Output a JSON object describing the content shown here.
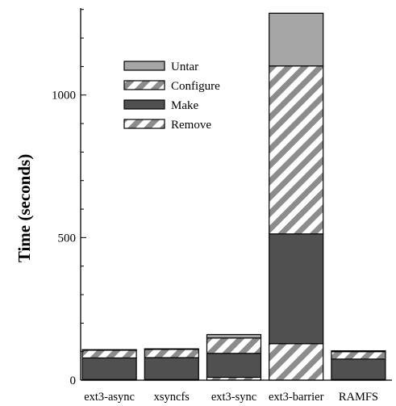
{
  "chart_data": {
    "type": "bar",
    "stacked": true,
    "categories": [
      "ext3-async",
      "xsyncfs",
      "ext3-sync",
      "ext3-barrier",
      "RAMFS"
    ],
    "series": [
      {
        "name": "Remove",
        "values": [
          2,
          2,
          10,
          128,
          2
        ],
        "fill": "hatch-light"
      },
      {
        "name": "Make",
        "values": [
          76,
          77,
          84,
          385,
          72
        ],
        "fill": "#505050"
      },
      {
        "name": "Configure",
        "values": [
          27,
          29,
          54,
          589,
          26
        ],
        "fill": "hatch-light"
      },
      {
        "name": "Untar",
        "values": [
          2,
          2,
          12,
          185,
          3
        ],
        "fill": "#a6a6a6"
      }
    ],
    "ylabel": "Time (seconds)",
    "xlabel": "",
    "yticks": [
      0,
      500,
      1000
    ],
    "ylim": [
      0,
      1305
    ],
    "grid": false,
    "legend_position": "top-left",
    "colors": {
      "dark": "#505050",
      "light": "#a6a6a6",
      "hatch_stripe": "#8c8c8c",
      "axis": "#000000"
    }
  }
}
